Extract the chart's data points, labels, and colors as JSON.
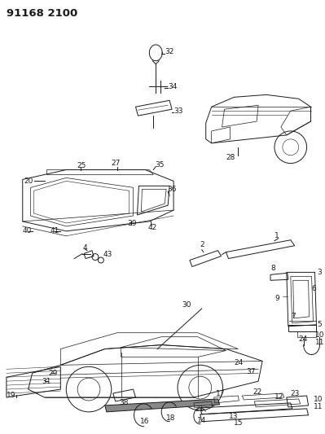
{
  "title": "91168 2100",
  "bg": "#ffffff",
  "lc": "#1a1a1a",
  "fig_w": 3.99,
  "fig_h": 5.33,
  "dpi": 100
}
